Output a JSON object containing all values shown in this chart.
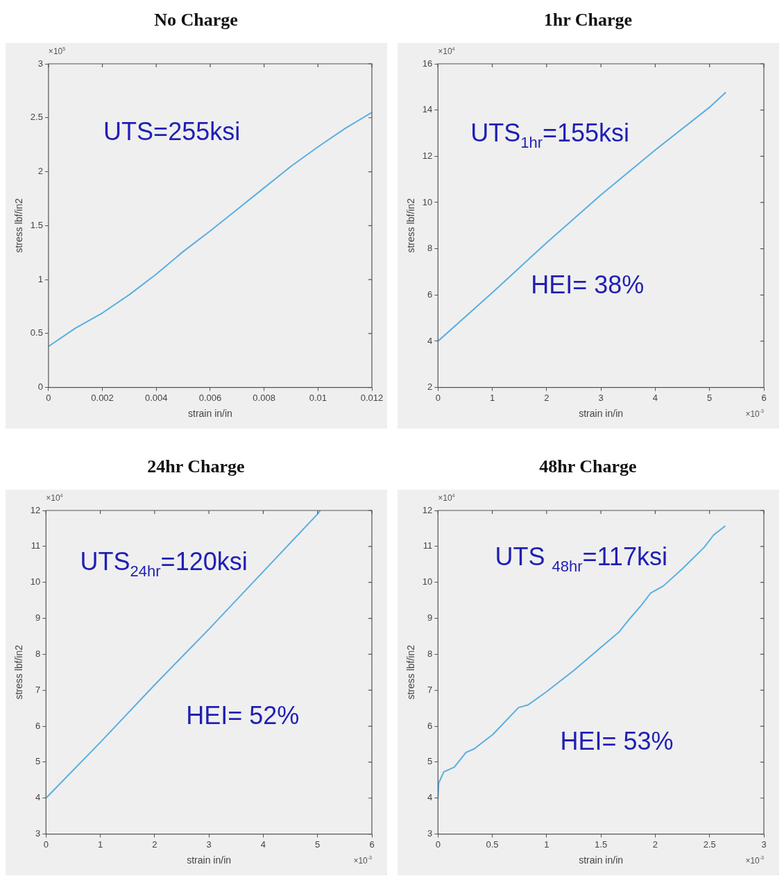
{
  "chart_data": [
    {
      "type": "line",
      "title": "No Charge",
      "xlabel": "strain in/in",
      "ylabel": "stress lbf/in2",
      "annotations": [
        "UTS=255ksi",
        "×10$^{5}$"
      ],
      "color": "#5aaee0",
      "x": [
        0,
        0.001,
        0.002,
        0.003,
        0.004,
        0.005,
        0.006,
        0.007,
        0.008,
        0.009,
        0.01,
        0.011,
        0.012
      ],
      "values": [
        0.38,
        0.55,
        0.69,
        0.86,
        1.05,
        1.26,
        1.45,
        1.65,
        1.85,
        2.05,
        2.23,
        2.4,
        2.55
      ],
      "xlim": [
        0,
        0.012
      ],
      "xticks": [
        0,
        0.002,
        0.004,
        0.006,
        0.008,
        0.01,
        0.012
      ],
      "ylim": [
        0,
        3
      ],
      "yticks": [
        0,
        0.5,
        1,
        1.5,
        2,
        2.5,
        3
      ]
    },
    {
      "type": "line",
      "title": "1hr Charge",
      "xlabel": "strain in/in",
      "ylabel": "stress lbf/in2",
      "annotations": [
        "UTS$_{1hr}$=155ksi",
        "HEI= 38%",
        "×10$^{4}$",
        "×10$^{-3}$"
      ],
      "color": "#5aaee0",
      "x": [
        0,
        1,
        2,
        3,
        4,
        5,
        5.3
      ],
      "values": [
        4,
        6.1,
        8.26,
        10.33,
        12.27,
        14.12,
        14.77
      ],
      "xlim": [
        0,
        6
      ],
      "xticks": [
        0,
        1,
        2,
        3,
        4,
        5,
        6
      ],
      "ylim": [
        2,
        16
      ],
      "yticks": [
        2,
        4,
        6,
        8,
        10,
        12,
        14,
        16
      ]
    },
    {
      "type": "line",
      "title": "24hr Charge",
      "xlabel": "strain in/in",
      "ylabel": "stress lbf/in2",
      "annotations": [
        "UTS$_{24hr}$=120ksi",
        "HEI= 52%",
        "×10$^{4}$",
        "×10$^{-3}$"
      ],
      "color": "#5aaee0",
      "x": [
        0,
        1,
        2,
        3,
        4,
        5,
        5.05
      ],
      "values": [
        4,
        5.55,
        7.15,
        8.7,
        10.3,
        11.9,
        12
      ],
      "xlim": [
        0,
        6
      ],
      "xticks": [
        0,
        1,
        2,
        3,
        4,
        5,
        6
      ],
      "ylim": [
        3,
        12
      ],
      "yticks": [
        3,
        4,
        5,
        6,
        7,
        8,
        9,
        10,
        11,
        12
      ]
    },
    {
      "type": "line",
      "title": "48hr Charge",
      "xlabel": "strain in/in",
      "ylabel": "stress lbf/in2",
      "annotations": [
        "UTS $_{48hr}$=117ksi",
        "HEI= 53%",
        "×10$^{4}$",
        "×10$^{-3}$"
      ],
      "color": "#5aaee0",
      "x": [
        0,
        0.0065,
        0.054,
        0.097,
        0.15,
        0.258,
        0.333,
        0.505,
        0.742,
        0.828,
        1,
        1.258,
        1.495,
        1.667,
        1.774,
        1.871,
        1.957,
        2.075,
        2.247,
        2.452,
        2.538,
        2.645
      ],
      "values": [
        3.98,
        4.42,
        4.73,
        4.79,
        4.86,
        5.27,
        5.37,
        5.77,
        6.52,
        6.59,
        6.96,
        7.57,
        8.18,
        8.62,
        9.02,
        9.36,
        9.7,
        9.9,
        10.37,
        10.98,
        11.32,
        11.57
      ],
      "xlim": [
        0,
        3
      ],
      "xticks": [
        0,
        0.5,
        1,
        1.5,
        2,
        2.5,
        3
      ],
      "ylim": [
        3,
        12
      ],
      "yticks": [
        3,
        4,
        5,
        6,
        7,
        8,
        9,
        10,
        11,
        12
      ]
    }
  ]
}
